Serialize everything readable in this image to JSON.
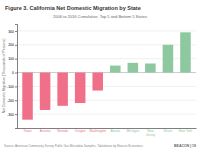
{
  "chart_data": {
    "type": "bar",
    "title": "Figure 3. California Net Domestic Migration by State",
    "subtitle": "2006 to 2016 Cumulative, Top 5 and Bottom 5 States",
    "ylabel": "Net Domestic Migration (Thousands of Persons)",
    "categories": [
      "Texas",
      "Arizona",
      "Nevada",
      "Oregon",
      "Washington",
      "Alaska",
      "Michigan",
      "New\nJersey",
      "Illinois",
      "New York"
    ],
    "values": [
      -340,
      -270,
      -240,
      -220,
      -130,
      50,
      70,
      65,
      200,
      290
    ],
    "colors": [
      "#f0708a",
      "#f0708a",
      "#f0708a",
      "#f0708a",
      "#f0708a",
      "#8dc89e",
      "#8dc89e",
      "#8dc89e",
      "#8dc89e",
      "#8dc89e"
    ],
    "ylim": [
      -400,
      350
    ],
    "yticks": [
      -300,
      -200,
      -100,
      0,
      100,
      200,
      300
    ],
    "grid": true,
    "annotations": [
      "Source: American Community Survey Public Use Microdata Samples. Tabulations by Beacon Economics.",
      "BEACON | 19"
    ]
  }
}
